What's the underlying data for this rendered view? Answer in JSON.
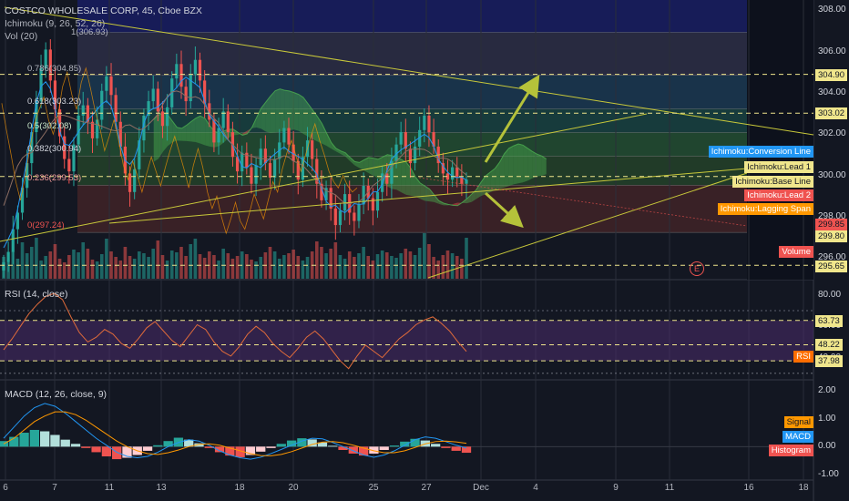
{
  "header": {
    "symbol_line": "COSTCO WHOLESALE CORP, 45, Cboe BZX",
    "ichimoku_line": "Ichimoku (9, 26, 52, 26)",
    "vol_line": "Vol (20)"
  },
  "panes": {
    "rsi_title": "RSI (14, close)",
    "macd_title": "MACD (12, 26, close, 9)"
  },
  "colors": {
    "background": "#131722",
    "up_candle": "#26a69a",
    "down_candle": "#ef5350",
    "cloud_green": "#4caf50",
    "cloud_red": "#ef5350",
    "trend_line": "#c8c83a",
    "dashed_level": "#f0e68c",
    "arrow": "#b5c23a",
    "rsi_band": "#4a2c6b",
    "macd_line": "#2196f3",
    "signal_line": "#ff9800"
  },
  "chart_data": [
    {
      "type": "candlestick",
      "title": "COSTCO WHOLESALE CORP, 45, Cboe BZX",
      "ylim": [
        295,
        308.5
      ],
      "y_ticks": [
        "308.00",
        "306.00",
        "304.00",
        "302.00",
        "300.00",
        "298.00",
        "296.00"
      ],
      "x_ticks": [
        "6",
        "7",
        "11",
        "13",
        "18",
        "20",
        "25",
        "27",
        "Dec",
        "4",
        "9",
        "11",
        "16",
        "18"
      ],
      "horizontal_levels": [
        {
          "label": "304.90",
          "value": 304.9
        },
        {
          "label": "303.02",
          "value": 303.02
        },
        {
          "label": "299.85",
          "value": 299.85
        },
        {
          "label": "299.80",
          "value": 299.8
        },
        {
          "label": "295.65",
          "value": 295.65
        }
      ],
      "fibonacci_levels": [
        {
          "label": "0.786(304.85)",
          "value": 304.85
        },
        {
          "label": "0.618(303.23)",
          "value": 303.23
        },
        {
          "label": "0.5(302.08)",
          "value": 302.08
        },
        {
          "label": "0.382(300.94)",
          "value": 300.94
        },
        {
          "label": "0.236(299.53)",
          "value": 299.53
        },
        {
          "label": "0(297.24)",
          "value": 297.24
        }
      ],
      "fib_top_label": "1(306.93)",
      "close": [
        295.8,
        296.3,
        297.4,
        298.2,
        299.4,
        300.6,
        302.1,
        303.6,
        305.2,
        306.1,
        304.6,
        303.2,
        301.9,
        300.8,
        300.2,
        301.5,
        302.9,
        303.4,
        302.6,
        301.8,
        302.7,
        304.1,
        304.8,
        303.9,
        302.6,
        301.4,
        300.1,
        299.2,
        300.3,
        301.7,
        302.9,
        303.6,
        304.2,
        303.1,
        302.4,
        303.3,
        304.7,
        305.4,
        304.3,
        303.6,
        304.9,
        305.6,
        304.6,
        303.5,
        302.7,
        301.6,
        302.3,
        303.1,
        302.1,
        300.9,
        300.2,
        301.1,
        300.4,
        299.6,
        300.5,
        301.3,
        300.6,
        299.9,
        300.8,
        301.6,
        302.3,
        301.5,
        300.7,
        299.8,
        300.9,
        301.7,
        300.8,
        299.6,
        298.8,
        299.4,
        298.4,
        297.6,
        298.3,
        299.1,
        298.2,
        297.8,
        298.6,
        299.5,
        298.9,
        298.3,
        299.2,
        300.1,
        299.6,
        300.7,
        301.5,
        302.1,
        301.3,
        300.6,
        301.4,
        302.2,
        302.9,
        302.1,
        301.4,
        300.6,
        300.1,
        299.8,
        300.4,
        299.9,
        299.6,
        299.8
      ],
      "panel_labels": [
        {
          "text": "Ichimoku:Conversion Line",
          "color": "#2196f3"
        },
        {
          "text": "Ichimoku:Lead 1",
          "color": "#f0e68c"
        },
        {
          "text": "Ichimoku:Base Line",
          "color": "#f0e68c"
        },
        {
          "text": "Ichimoku:Lead 2",
          "color": "#ef5350"
        },
        {
          "text": "Ichimoku:Lagging Span",
          "color": "#ff9800"
        },
        {
          "text": "Volume",
          "color": "#ef5350"
        }
      ],
      "event_marker": "E"
    },
    {
      "type": "line",
      "title": "RSI (14, close)",
      "ylim": [
        27,
        88
      ],
      "y_ticks": [
        "80.00",
        "60.00",
        "40.00"
      ],
      "levels": [
        {
          "label": "63.73",
          "value": 63.73
        },
        {
          "label": "48.22",
          "value": 48.22
        },
        {
          "label": "37.98",
          "value": 37.98
        }
      ],
      "series_label": "RSI",
      "values": [
        45,
        52,
        60,
        68,
        74,
        79,
        81,
        77,
        66,
        56,
        50,
        53,
        58,
        55,
        49,
        46,
        52,
        59,
        63,
        57,
        51,
        47,
        54,
        61,
        58,
        50,
        44,
        41,
        47,
        55,
        60,
        56,
        49,
        44,
        40,
        46,
        53,
        57,
        52,
        45,
        38,
        33,
        41,
        48,
        44,
        40,
        46,
        52,
        56,
        61,
        64,
        66,
        62,
        57,
        50,
        44
      ]
    },
    {
      "type": "bar",
      "title": "MACD (12, 26, close, 9)",
      "ylim": [
        -1.2,
        2.3
      ],
      "y_ticks": [
        "2.00",
        "1.00",
        "0.00",
        "-1.00"
      ],
      "series_labels": [
        {
          "text": "Signal",
          "color": "#ff9800"
        },
        {
          "text": "MACD",
          "color": "#2196f3"
        },
        {
          "text": "Histogram",
          "color": "#ef5350"
        }
      ],
      "histogram": [
        0.2,
        0.35,
        0.5,
        0.6,
        0.55,
        0.42,
        0.25,
        0.1,
        -0.05,
        -0.2,
        -0.35,
        -0.45,
        -0.4,
        -0.3,
        -0.15,
        0.05,
        0.2,
        0.32,
        0.25,
        0.12,
        -0.05,
        -0.2,
        -0.32,
        -0.38,
        -0.3,
        -0.18,
        -0.05,
        0.1,
        0.22,
        0.3,
        0.26,
        0.15,
        0.03,
        -0.12,
        -0.25,
        -0.32,
        -0.25,
        -0.12,
        0.04,
        0.18,
        0.28,
        0.22,
        0.1,
        -0.05,
        -0.15,
        -0.22
      ],
      "macd": [
        0.3,
        0.7,
        1.1,
        1.4,
        1.55,
        1.45,
        1.2,
        0.9,
        0.6,
        0.3,
        0.05,
        -0.2,
        -0.35,
        -0.4,
        -0.35,
        -0.2,
        0.0,
        0.15,
        0.25,
        0.2,
        0.05,
        -0.15,
        -0.3,
        -0.4,
        -0.45,
        -0.38,
        -0.25,
        -0.1,
        0.05,
        0.2,
        0.3,
        0.28,
        0.15,
        0.0,
        -0.15,
        -0.3,
        -0.38,
        -0.3,
        -0.15,
        0.05,
        0.25,
        0.35,
        0.3,
        0.18,
        0.05,
        -0.05
      ],
      "signal": [
        0.1,
        0.3,
        0.6,
        0.9,
        1.1,
        1.25,
        1.25,
        1.15,
        0.95,
        0.7,
        0.45,
        0.2,
        0.0,
        -0.15,
        -0.25,
        -0.28,
        -0.22,
        -0.12,
        0.0,
        0.08,
        0.1,
        0.05,
        -0.05,
        -0.15,
        -0.25,
        -0.32,
        -0.33,
        -0.28,
        -0.18,
        -0.05,
        0.08,
        0.16,
        0.18,
        0.14,
        0.05,
        -0.05,
        -0.15,
        -0.22,
        -0.22,
        -0.15,
        -0.03,
        0.1,
        0.18,
        0.2,
        0.17,
        0.12
      ]
    }
  ]
}
